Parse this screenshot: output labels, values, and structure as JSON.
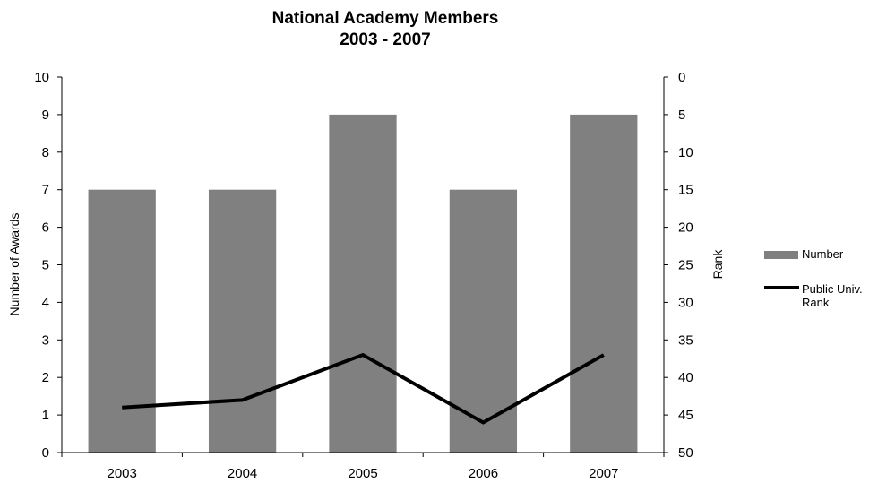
{
  "chart_data": {
    "type": "bar",
    "title": "National Academy Members",
    "subtitle": "2003 - 2007",
    "categories": [
      "2003",
      "2004",
      "2005",
      "2006",
      "2007"
    ],
    "ylabel": "Number of Awards",
    "y2label": "Rank",
    "ylim": [
      0,
      10
    ],
    "y2lim": [
      0,
      50
    ],
    "y2_inverted": true,
    "yticks": [
      "0",
      "1",
      "2",
      "3",
      "4",
      "5",
      "6",
      "7",
      "8",
      "9",
      "10"
    ],
    "y2ticks": [
      "0",
      "5",
      "10",
      "15",
      "20",
      "25",
      "30",
      "35",
      "40",
      "45",
      "50"
    ],
    "series": [
      {
        "name": "Number",
        "type": "bar",
        "axis": "left",
        "color": "#808080",
        "values": [
          7,
          7,
          9,
          7,
          9
        ]
      },
      {
        "name": "Public Univ. Rank",
        "legend_lines": [
          "Public Univ.",
          "Rank"
        ],
        "type": "line",
        "axis": "right",
        "color": "#000000",
        "values": [
          44,
          43,
          37,
          46,
          37
        ]
      }
    ],
    "grid": false,
    "legend": "right"
  }
}
